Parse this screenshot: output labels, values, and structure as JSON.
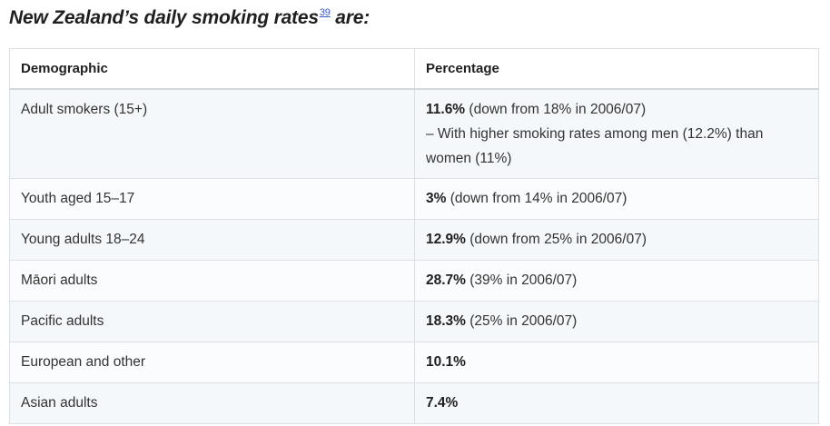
{
  "heading": {
    "text": "New Zealand’s daily smoking rates",
    "footnote_ref": "39",
    "suffix": " are:"
  },
  "table": {
    "headers": [
      "Demographic",
      "Percentage"
    ],
    "rows": [
      {
        "demographic": "Adult smokers (15+)",
        "value": "11.6%",
        "detail": " (down from 18% in 2006/07)",
        "note": "– With higher smoking rates among men (12.2%) than women (11%)"
      },
      {
        "demographic": "Youth aged 15–17",
        "value": "3%",
        "detail": " (down from 14% in 2006/07)"
      },
      {
        "demographic": "Young adults 18–24",
        "value": "12.9%",
        "detail": " (down from 25% in 2006/07)"
      },
      {
        "demographic": "Māori adults",
        "value": "28.7%",
        "detail": " (39% in 2006/07)"
      },
      {
        "demographic": "Pacific adults",
        "value": "18.3%",
        "detail": " (25% in 2006/07)"
      },
      {
        "demographic": "European and other",
        "value": "10.1%",
        "detail": ""
      },
      {
        "demographic": "Asian adults",
        "value": "7.4%",
        "detail": ""
      }
    ]
  }
}
